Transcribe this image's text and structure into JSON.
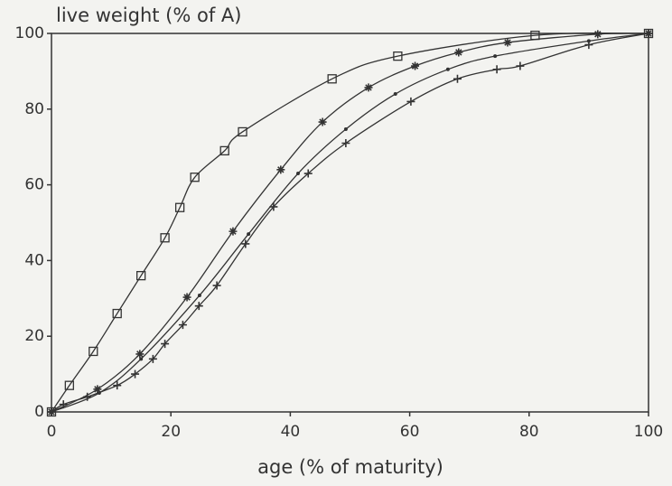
{
  "chart_data": {
    "type": "line",
    "ylabel": "live weight (% of A)",
    "xlabel": "age (% of maturity)",
    "xlim": [
      0,
      100
    ],
    "ylim": [
      0,
      100
    ],
    "xticks": [
      0,
      20,
      40,
      60,
      80,
      100
    ],
    "yticks": [
      0,
      20,
      40,
      60,
      80,
      100
    ],
    "series": [
      {
        "color": "#333333",
        "marker": "square",
        "x": [
          0,
          3,
          7,
          11,
          15,
          19,
          21.5,
          24,
          29,
          32,
          47,
          58,
          81,
          100
        ],
        "values": [
          0,
          7,
          16,
          26,
          36,
          46,
          54,
          62,
          69,
          74,
          88,
          94,
          99.5,
          100
        ]
      },
      {
        "color": "#333333",
        "marker": "asterisk",
        "x": [
          0,
          7.7,
          14.8,
          22.7,
          30.4,
          38.4,
          45.4,
          53.1,
          60.9,
          68.2,
          76.4,
          91.5,
          100
        ],
        "values": [
          0,
          6,
          15.3,
          30.3,
          47.7,
          64,
          76.6,
          85.7,
          91.4,
          95,
          97.6,
          99.8,
          100
        ]
      },
      {
        "color": "#333333",
        "marker": "dot",
        "x": [
          0,
          8,
          15,
          24.8,
          33,
          41.3,
          49.3,
          57.6,
          66.4,
          74.3,
          90,
          100
        ],
        "values": [
          0,
          5,
          14,
          30.8,
          47,
          63,
          74.7,
          84,
          90.5,
          94,
          98,
          100
        ]
      },
      {
        "color": "#333333",
        "marker": "plus",
        "x": [
          0,
          2,
          6,
          11,
          14,
          17,
          19,
          22,
          24.7,
          27.7,
          32.5,
          37.2,
          43,
          49.3,
          60.2,
          68,
          74.6,
          78.5,
          90,
          100
        ],
        "values": [
          0,
          2,
          4,
          7,
          10,
          14,
          18,
          23,
          28,
          33.4,
          44.4,
          54.2,
          63,
          71,
          82,
          88,
          90.5,
          91.4,
          97,
          100
        ]
      }
    ]
  }
}
